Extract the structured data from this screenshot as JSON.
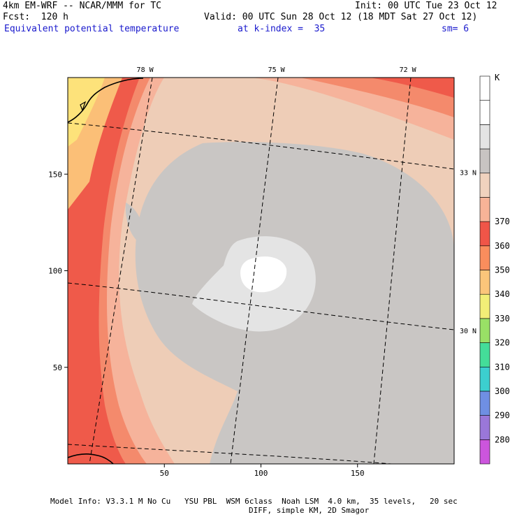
{
  "header": {
    "model": "4km EM-WRF -- NCAR/MMM for TC",
    "forecast": "Fcst:  120 h",
    "init": "Init: 00 UTC Tue 23 Oct 12",
    "valid": "Valid: 00 UTC Sun 28 Oct 12 (18 MDT Sat 27 Oct 12)",
    "field": "Equivalent potential temperature",
    "level": "at k-index =  35",
    "smoothing": "sm= 6"
  },
  "footer": {
    "line1": "Model Info: V3.3.1 M No Cu   YSU PBL  WSM 6class  Noah LSM  4.0 km,  35 levels,   20 sec",
    "line2": "DIFF, simple KM, 2D Smagor"
  },
  "chart_data": {
    "type": "heatmap",
    "title": "Equivalent potential temperature",
    "xlabel": "",
    "ylabel": "",
    "xlim": [
      0,
      200
    ],
    "ylim": [
      0,
      200
    ],
    "x_ticks": [
      50,
      100,
      150
    ],
    "y_ticks": [
      50,
      100,
      150
    ],
    "top_labels": [
      {
        "label": "78 W",
        "x": 40
      },
      {
        "label": "75 W",
        "x": 108
      },
      {
        "label": "72 W",
        "x": 176
      }
    ],
    "right_labels": [
      {
        "label": "33 N",
        "y": 151
      },
      {
        "label": "30 N",
        "y": 69
      }
    ],
    "colorbar": {
      "unit": "K",
      "levels": [
        280,
        290,
        300,
        310,
        320,
        330,
        340,
        350,
        360,
        370
      ],
      "colors": [
        "#cc55dd",
        "#9a77d9",
        "#6f8fe3",
        "#3ccfcf",
        "#44dd99",
        "#99e066",
        "#f2ee77",
        "#fbc57a",
        "#fa8d5d",
        "#f05548",
        "#f7b397",
        "#f0d2be",
        "#c8c4c2",
        "#e4e4e4",
        "#ffffff",
        "#ffffff"
      ]
    },
    "field_colors": {
      "k320_330": "#fde27a",
      "k330_340": "#fbbf77",
      "k340_350": "#ef5a4a",
      "k345": "#f48a6c",
      "k350_355": "#f6b39b",
      "k355_360": "#eecdb7",
      "k360_365": "#c9c6c4",
      "k365_370": "#e4e4e4",
      "k370": "#ffffff"
    }
  }
}
